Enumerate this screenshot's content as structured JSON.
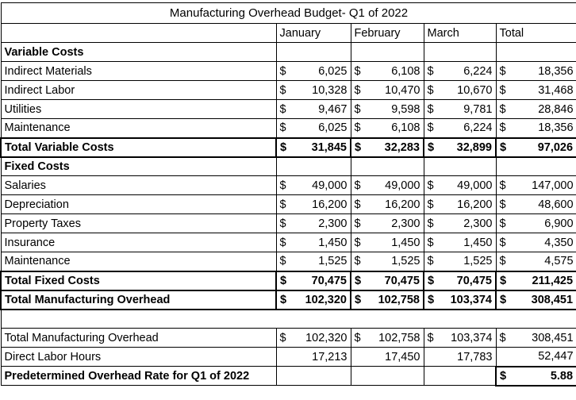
{
  "chart_data": {
    "type": "table",
    "title": "Manufacturing Overhead Budget- Q1 of 2022",
    "currency": "$",
    "columns": [
      "",
      "January",
      "February",
      "March",
      "Total"
    ],
    "rows": [
      {
        "type": "section",
        "label": "Variable Costs",
        "values": [
          "",
          "",
          "",
          ""
        ]
      },
      {
        "type": "money",
        "label": "Indirect Materials",
        "values": [
          "6,025",
          "6,108",
          "6,224",
          "18,356"
        ]
      },
      {
        "type": "money",
        "label": "Indirect Labor",
        "values": [
          "10,328",
          "10,470",
          "10,670",
          "31,468"
        ]
      },
      {
        "type": "money",
        "label": "Utilities",
        "values": [
          "9,467",
          "9,598",
          "9,781",
          "28,846"
        ]
      },
      {
        "type": "money",
        "label": "Maintenance",
        "values": [
          "6,025",
          "6,108",
          "6,224",
          "18,356"
        ]
      },
      {
        "type": "total",
        "label": "Total Variable Costs",
        "values": [
          "31,845",
          "32,283",
          "32,899",
          "97,026"
        ]
      },
      {
        "type": "section",
        "label": "Fixed Costs",
        "values": [
          "",
          "",
          "",
          ""
        ]
      },
      {
        "type": "money",
        "label": "Salaries",
        "values": [
          "49,000",
          "49,000",
          "49,000",
          "147,000"
        ]
      },
      {
        "type": "money",
        "label": "Depreciation",
        "values": [
          "16,200",
          "16,200",
          "16,200",
          "48,600"
        ]
      },
      {
        "type": "money",
        "label": "Property Taxes",
        "values": [
          "2,300",
          "2,300",
          "2,300",
          "6,900"
        ]
      },
      {
        "type": "money",
        "label": "Insurance",
        "values": [
          "1,450",
          "1,450",
          "1,450",
          "4,350"
        ]
      },
      {
        "type": "money",
        "label": "Maintenance",
        "values": [
          "1,525",
          "1,525",
          "1,525",
          "4,575"
        ]
      },
      {
        "type": "total",
        "label": "Total Fixed Costs",
        "values": [
          "70,475",
          "70,475",
          "70,475",
          "211,425"
        ]
      },
      {
        "type": "total",
        "label": "Total Manufacturing Overhead",
        "values": [
          "102,320",
          "102,758",
          "103,374",
          "308,451"
        ]
      },
      {
        "type": "blank",
        "label": "",
        "values": [
          "",
          "",
          "",
          ""
        ]
      },
      {
        "type": "money",
        "label": "Total Manufacturing Overhead",
        "values": [
          "102,320",
          "102,758",
          "103,374",
          "308,451"
        ]
      },
      {
        "type": "number",
        "label": "Direct Labor Hours",
        "values": [
          "17,213",
          "17,450",
          "17,783",
          "52,447"
        ]
      },
      {
        "type": "rate",
        "label": "Predetermined Overhead Rate for Q1 of 2022",
        "values": [
          "",
          "",
          "",
          "5.88"
        ]
      }
    ]
  }
}
